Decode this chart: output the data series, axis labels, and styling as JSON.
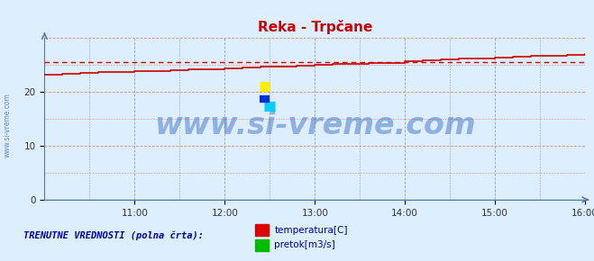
{
  "title": "Reka - Trpčane",
  "title_color": "#cc0000",
  "bg_color": "#ddeeff",
  "plot_bg_color": "#ddeeff",
  "xlim": [
    0,
    360
  ],
  "ylim": [
    0,
    30
  ],
  "yticks": [
    0,
    10,
    20
  ],
  "xtick_labels": [
    "11:00",
    "12:00",
    "13:00",
    "14:00",
    "15:00",
    "16:00"
  ],
  "xtick_positions": [
    60,
    120,
    180,
    240,
    300,
    360
  ],
  "watermark": "www.si-vreme.com",
  "legend_label1": "temperatura[C]",
  "legend_label2": "pretok[m3/s]",
  "legend_color1": "#dd0000",
  "legend_color2": "#00bb00",
  "footer_text": "TRENUTNE VREDNOSTI (polna črta):",
  "temp_line_color": "#cc0000",
  "flow_line_color": "#00aa00",
  "avg_line_color": "#cc0000",
  "grid_color": "#dd8888",
  "axis_color": "#5577aa",
  "temp_x": [
    0,
    12,
    24,
    36,
    48,
    60,
    72,
    84,
    96,
    108,
    120,
    132,
    144,
    156,
    168,
    180,
    192,
    204,
    216,
    228,
    240,
    252,
    264,
    276,
    288,
    300,
    312,
    324,
    336,
    348,
    360
  ],
  "temp_y": [
    23.2,
    23.3,
    23.5,
    23.6,
    23.6,
    23.8,
    23.9,
    24.0,
    24.1,
    24.2,
    24.3,
    24.5,
    24.6,
    24.7,
    24.8,
    25.0,
    25.1,
    25.2,
    25.3,
    25.4,
    25.6,
    25.9,
    26.0,
    26.1,
    26.2,
    26.4,
    26.5,
    26.6,
    26.7,
    26.8,
    27.0
  ],
  "flow_y": [
    0.03,
    0.03,
    0.03,
    0.03,
    0.03,
    0.03,
    0.03,
    0.03,
    0.03,
    0.03,
    0.03,
    0.03,
    0.03,
    0.03,
    0.03,
    0.03,
    0.03,
    0.03,
    0.03,
    0.03,
    0.03,
    0.03,
    0.03,
    0.03,
    0.03,
    0.03,
    0.03,
    0.03,
    0.03,
    0.03,
    0.03
  ],
  "avg_temp": 25.5,
  "watermark_fontsize": 24,
  "watermark_color": "#3366bb",
  "watermark_alpha": 0.45,
  "left_label": "www.si-vreme.com"
}
